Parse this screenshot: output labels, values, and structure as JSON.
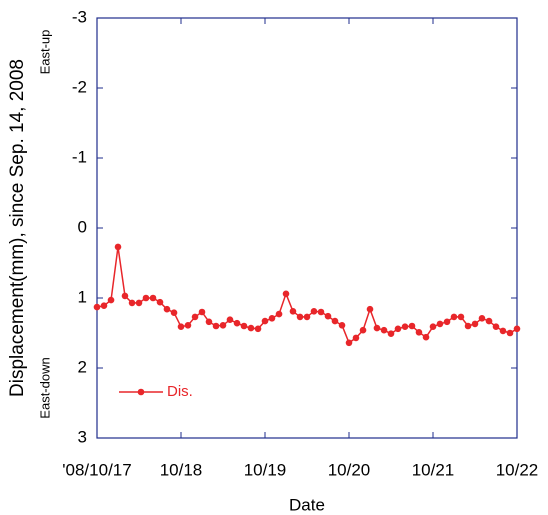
{
  "chart_data": {
    "type": "line",
    "y_label": "Displacement(mm), since Sep. 14, 2008",
    "y_annotations": [
      "East-up",
      "East-down"
    ],
    "x_label": "Date",
    "x": [
      17,
      17.083,
      17.167,
      17.25,
      17.333,
      17.417,
      17.5,
      17.583,
      17.667,
      17.75,
      17.833,
      17.917,
      18,
      18.083,
      18.167,
      18.25,
      18.333,
      18.417,
      18.5,
      18.583,
      18.667,
      18.75,
      18.833,
      18.917,
      19,
      19.083,
      19.167,
      19.25,
      19.333,
      19.417,
      19.5,
      19.583,
      19.667,
      19.75,
      19.833,
      19.917,
      20,
      20.083,
      20.167,
      20.25,
      20.333,
      20.417,
      20.5,
      20.583,
      20.667,
      20.75,
      20.833,
      20.917,
      21,
      21.083,
      21.167,
      21.25,
      21.333,
      21.417,
      21.5,
      21.583,
      21.667,
      21.75,
      21.833,
      21.917,
      22
    ],
    "series": [
      {
        "name": "Dis.",
        "color": "#e8262a",
        "values": [
          1.13,
          1.11,
          1.03,
          0.27,
          0.97,
          1.07,
          1.07,
          1.0,
          1.0,
          1.06,
          1.16,
          1.21,
          1.41,
          1.39,
          1.27,
          1.2,
          1.34,
          1.4,
          1.39,
          1.31,
          1.36,
          1.4,
          1.43,
          1.44,
          1.33,
          1.29,
          1.23,
          0.94,
          1.19,
          1.27,
          1.27,
          1.19,
          1.2,
          1.26,
          1.33,
          1.39,
          1.64,
          1.57,
          1.46,
          1.16,
          1.43,
          1.46,
          1.51,
          1.44,
          1.41,
          1.4,
          1.49,
          1.56,
          1.41,
          1.37,
          1.34,
          1.27,
          1.27,
          1.4,
          1.37,
          1.29,
          1.33,
          1.41,
          1.47,
          1.5,
          1.44
        ]
      }
    ],
    "xlim": [
      17,
      22
    ],
    "xticks": [
      {
        "value": 17,
        "label": "'08/10/17"
      },
      {
        "value": 18,
        "label": "10/18"
      },
      {
        "value": 19,
        "label": "10/19"
      },
      {
        "value": 20,
        "label": "10/20"
      },
      {
        "value": 21,
        "label": "10/21"
      },
      {
        "value": 22,
        "label": "10/22"
      }
    ],
    "ylim": [
      -3,
      3
    ],
    "y_inverted": true,
    "yticks": [
      -3,
      -2,
      -1,
      0,
      1,
      2,
      3
    ],
    "legend": "lower left",
    "axis_color": "#1f2d8c"
  }
}
